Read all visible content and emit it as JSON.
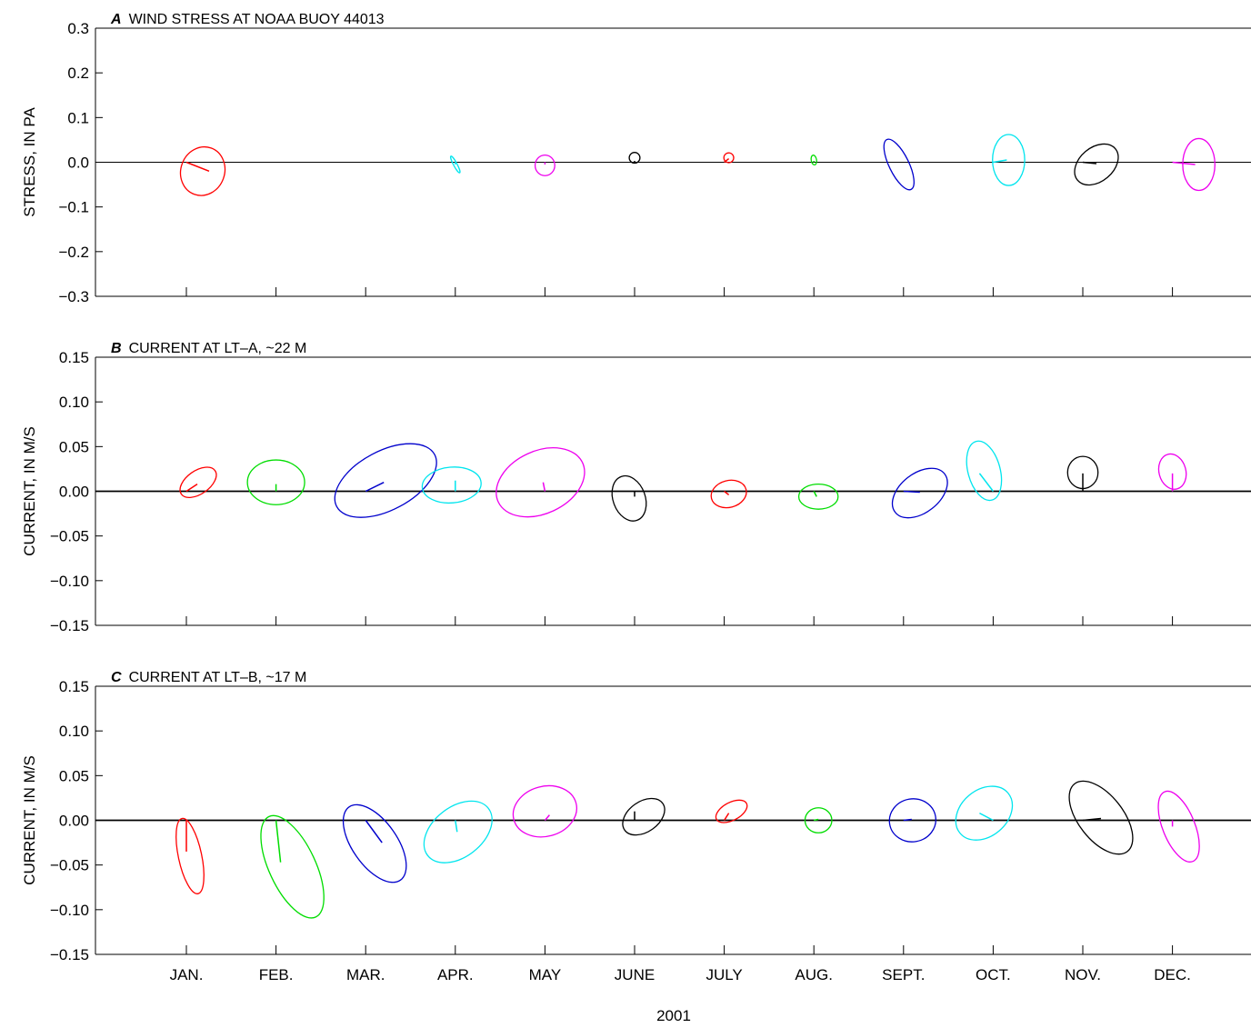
{
  "chart_data": {
    "type": "ellipse-vector",
    "xlabel": "2001",
    "months": [
      "JAN.",
      "FEB.",
      "MAR.",
      "APR.",
      "MAY",
      "JUNE",
      "JULY",
      "AUG.",
      "SEPT.",
      "OCT.",
      "NOV.",
      "DEC."
    ],
    "colors": [
      "#ff0000",
      "#00dd00",
      "#0000cc",
      "#00e5ee",
      "#ee00ee",
      "#000000"
    ],
    "panels": [
      {
        "letter": "A",
        "title": "WIND STRESS AT NOAA BUOY 44013",
        "ylabel": "STRESS, IN PA",
        "ylim": [
          -0.3,
          0.3
        ],
        "yticks": [
          0.3,
          0.2,
          0.1,
          0.0,
          -0.1,
          -0.2,
          -0.3
        ],
        "ytick_labels": [
          "0.3",
          "0.2",
          "0.1",
          "0.0",
          "−0.1",
          "−0.2",
          "−0.3"
        ],
        "zero_line": "thin",
        "items": [
          {
            "month": 0,
            "color": 0,
            "cx": 0.18,
            "cy": -0.02,
            "a": 0.049,
            "b": 0.055,
            "angle": 20,
            "vx": 0.25,
            "vy": -0.02
          },
          {
            "month": 3,
            "color": 3,
            "cx": 0.0,
            "cy": -0.005,
            "a": 0.021,
            "b": 0.004,
            "angle": 62,
            "vx": 0.0,
            "vy": -0.005
          },
          {
            "month": 4,
            "color": 4,
            "cx": 0.0,
            "cy": -0.007,
            "a": 0.022,
            "b": 0.023,
            "angle": 0,
            "vx": 0.0,
            "vy": -0.005
          },
          {
            "month": 5,
            "color": 5,
            "cx": 0.0,
            "cy": 0.01,
            "a": 0.012,
            "b": 0.012,
            "angle": 0,
            "vx": 0.0,
            "vy": 0.003
          },
          {
            "month": 6,
            "color": 0,
            "cx": 0.05,
            "cy": 0.01,
            "a": 0.011,
            "b": 0.011,
            "angle": 10,
            "vx": 0.05,
            "vy": 0.008
          },
          {
            "month": 7,
            "color": 1,
            "cx": 0.0,
            "cy": 0.005,
            "a": 0.011,
            "b": 0.006,
            "angle": 80,
            "vx": 0.0,
            "vy": 0.003
          },
          {
            "month": 8,
            "color": 2,
            "cx": -0.05,
            "cy": -0.005,
            "a": 0.062,
            "b": 0.022,
            "angle": 64,
            "vx": 0.0,
            "vy": 0.0
          },
          {
            "month": 9,
            "color": 3,
            "cx": 0.17,
            "cy": 0.005,
            "a": 0.036,
            "b": 0.057,
            "angle": 0,
            "vx": 0.15,
            "vy": 0.005
          },
          {
            "month": 10,
            "color": 5,
            "cx": 0.15,
            "cy": -0.005,
            "a": 0.055,
            "b": 0.038,
            "angle": -40,
            "vx": 0.15,
            "vy": -0.003
          },
          {
            "month": 11,
            "color": 4,
            "cx": 0.29,
            "cy": -0.005,
            "a": 0.036,
            "b": 0.058,
            "angle": 0,
            "vx": 0.25,
            "vy": -0.005
          }
        ]
      },
      {
        "letter": "B",
        "title": "CURRENT AT LT–A, ~22 M",
        "ylabel": "CURRENT, IN M/S",
        "ylim": [
          -0.15,
          0.15
        ],
        "yticks": [
          0.15,
          0.1,
          0.05,
          0.0,
          -0.05,
          -0.1,
          -0.15
        ],
        "ytick_labels": [
          "0.15",
          "0.10",
          "0.05",
          "0.00",
          "−0.05",
          "−0.10",
          "−0.15"
        ],
        "zero_line": "thick",
        "items": [
          {
            "month": 0,
            "color": 0,
            "cx": 0.13,
            "cy": 0.01,
            "a": 0.023,
            "b": 0.013,
            "angle": -35,
            "vx": 0.12,
            "vy": 0.008
          },
          {
            "month": 1,
            "color": 1,
            "cx": 0.0,
            "cy": 0.01,
            "a": 0.032,
            "b": 0.025,
            "angle": 0,
            "vx": 0.0,
            "vy": 0.008
          },
          {
            "month": 2,
            "color": 2,
            "cx": 0.22,
            "cy": 0.012,
            "a": 0.062,
            "b": 0.033,
            "angle": -28,
            "vx": 0.2,
            "vy": 0.01
          },
          {
            "month": 3,
            "color": 3,
            "cx": -0.04,
            "cy": 0.007,
            "a": 0.033,
            "b": 0.02,
            "angle": -5,
            "vx": 0.0,
            "vy": 0.012
          },
          {
            "month": 4,
            "color": 4,
            "cx": -0.05,
            "cy": 0.01,
            "a": 0.052,
            "b": 0.035,
            "angle": -25,
            "vx": -0.02,
            "vy": 0.01
          },
          {
            "month": 5,
            "color": 5,
            "cx": -0.06,
            "cy": -0.008,
            "a": 0.018,
            "b": 0.026,
            "angle": -20,
            "vx": 0.0,
            "vy": -0.006
          },
          {
            "month": 6,
            "color": 0,
            "cx": 0.05,
            "cy": -0.003,
            "a": 0.02,
            "b": 0.015,
            "angle": -15,
            "vx": 0.05,
            "vy": -0.004
          },
          {
            "month": 7,
            "color": 1,
            "cx": 0.05,
            "cy": -0.006,
            "a": 0.022,
            "b": 0.014,
            "angle": 0,
            "vx": 0.03,
            "vy": -0.006
          },
          {
            "month": 8,
            "color": 2,
            "cx": 0.18,
            "cy": -0.002,
            "a": 0.035,
            "b": 0.022,
            "angle": -38,
            "vx": 0.18,
            "vy": -0.001
          },
          {
            "month": 9,
            "color": 3,
            "cx": -0.1,
            "cy": 0.023,
            "a": 0.018,
            "b": 0.034,
            "angle": -15,
            "vx": -0.15,
            "vy": 0.02
          },
          {
            "month": 10,
            "color": 5,
            "cx": 0.0,
            "cy": 0.021,
            "a": 0.017,
            "b": 0.018,
            "angle": 0,
            "vx": 0.0,
            "vy": 0.02
          },
          {
            "month": 11,
            "color": 4,
            "cx": 0.0,
            "cy": 0.022,
            "a": 0.015,
            "b": 0.02,
            "angle": -15,
            "vx": 0.0,
            "vy": 0.02
          }
        ]
      },
      {
        "letter": "C",
        "title": "CURRENT AT LT–B, ~17 M",
        "ylabel": "CURRENT, IN M/S",
        "ylim": [
          -0.15,
          0.15
        ],
        "yticks": [
          0.15,
          0.1,
          0.05,
          0.0,
          -0.05,
          -0.1,
          -0.15
        ],
        "ytick_labels": [
          "0.15",
          "0.10",
          "0.05",
          "0.00",
          "−0.05",
          "−0.10",
          "−0.15"
        ],
        "zero_line": "thick",
        "items": [
          {
            "month": 0,
            "color": 0,
            "cx": 0.04,
            "cy": -0.04,
            "a": 0.013,
            "b": 0.043,
            "angle": -12,
            "vx": 0.0,
            "vy": -0.035
          },
          {
            "month": 1,
            "color": 1,
            "cx": 0.18,
            "cy": -0.052,
            "a": 0.026,
            "b": 0.062,
            "angle": -25,
            "vx": 0.05,
            "vy": -0.047
          },
          {
            "month": 2,
            "color": 2,
            "cx": 0.1,
            "cy": -0.026,
            "a": 0.025,
            "b": 0.05,
            "angle": -35,
            "vx": 0.18,
            "vy": -0.025
          },
          {
            "month": 3,
            "color": 3,
            "cx": 0.03,
            "cy": -0.013,
            "a": 0.043,
            "b": 0.028,
            "angle": -38,
            "vx": 0.02,
            "vy": -0.013
          },
          {
            "month": 4,
            "color": 4,
            "cx": 0.0,
            "cy": 0.01,
            "a": 0.036,
            "b": 0.028,
            "angle": -15,
            "vx": 0.05,
            "vy": 0.006
          },
          {
            "month": 5,
            "color": 5,
            "cx": 0.1,
            "cy": 0.004,
            "a": 0.026,
            "b": 0.017,
            "angle": -35,
            "vx": 0.0,
            "vy": 0.01
          },
          {
            "month": 6,
            "color": 0,
            "cx": 0.08,
            "cy": 0.01,
            "a": 0.019,
            "b": 0.01,
            "angle": -28,
            "vx": 0.05,
            "vy": 0.008
          },
          {
            "month": 7,
            "color": 1,
            "cx": 0.05,
            "cy": 0.0,
            "a": 0.015,
            "b": 0.014,
            "angle": 0,
            "vx": 0.05,
            "vy": 0.001
          },
          {
            "month": 8,
            "color": 2,
            "cx": 0.1,
            "cy": 0.0,
            "a": 0.026,
            "b": 0.024,
            "angle": -10,
            "vx": 0.09,
            "vy": 0.001
          },
          {
            "month": 9,
            "color": 3,
            "cx": -0.1,
            "cy": 0.008,
            "a": 0.035,
            "b": 0.026,
            "angle": -40,
            "vx": -0.15,
            "vy": 0.008
          },
          {
            "month": 10,
            "color": 5,
            "cx": 0.2,
            "cy": 0.003,
            "a": 0.025,
            "b": 0.048,
            "angle": -38,
            "vx": 0.2,
            "vy": 0.002
          },
          {
            "month": 11,
            "color": 4,
            "cx": 0.07,
            "cy": -0.007,
            "a": 0.042,
            "b": 0.018,
            "angle": 68,
            "vx": 0.0,
            "vy": -0.007
          }
        ]
      }
    ]
  }
}
